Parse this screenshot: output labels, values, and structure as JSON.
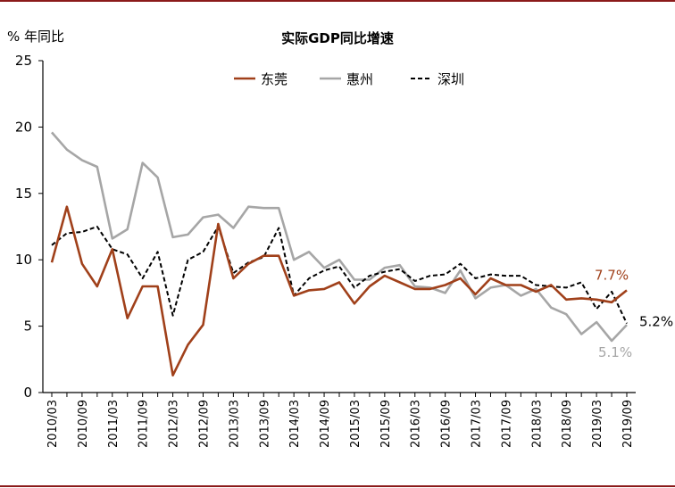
{
  "chart_data": {
    "type": "line",
    "title": "实际GDP同比增速",
    "ylabel": "% 年同比",
    "xlabel": "",
    "ylim": [
      0,
      25
    ],
    "yticks": [
      0,
      5,
      10,
      15,
      20,
      25
    ],
    "grid": false,
    "legend_position": "top",
    "x": [
      "2010/03",
      "2010/06",
      "2010/09",
      "2010/12",
      "2011/03",
      "2011/06",
      "2011/09",
      "2011/12",
      "2012/03",
      "2012/06",
      "2012/09",
      "2012/12",
      "2013/03",
      "2013/06",
      "2013/09",
      "2013/12",
      "2014/03",
      "2014/06",
      "2014/09",
      "2014/12",
      "2015/03",
      "2015/06",
      "2015/09",
      "2015/12",
      "2016/03",
      "2016/06",
      "2016/09",
      "2016/12",
      "2017/03",
      "2017/06",
      "2017/09",
      "2017/12",
      "2018/03",
      "2018/06",
      "2018/09",
      "2018/12",
      "2019/03",
      "2019/06",
      "2019/09"
    ],
    "xtick_labels": [
      "2010/03",
      "2010/09",
      "2011/03",
      "2011/09",
      "2012/03",
      "2012/09",
      "2013/03",
      "2013/09",
      "2014/03",
      "2014/09",
      "2015/03",
      "2015/09",
      "2016/03",
      "2016/09",
      "2017/03",
      "2017/09",
      "2018/03",
      "2018/09",
      "2019/03",
      "2019/09"
    ],
    "series": [
      {
        "name": "东莞",
        "color": "#a0401a",
        "style": "solid",
        "values": [
          9.8,
          14.0,
          9.7,
          8.0,
          10.8,
          5.6,
          8.0,
          8.0,
          1.3,
          3.6,
          5.1,
          12.7,
          8.6,
          9.7,
          10.3,
          10.3,
          7.3,
          7.7,
          7.8,
          8.3,
          6.7,
          8.0,
          8.8,
          8.3,
          7.8,
          7.8,
          8.1,
          8.6,
          7.4,
          8.6,
          8.1,
          8.1,
          7.6,
          8.1,
          7.0,
          7.1,
          7.0,
          6.8,
          7.7
        ]
      },
      {
        "name": "惠州",
        "color": "#a6a6a6",
        "style": "solid",
        "values": [
          19.6,
          18.3,
          17.5,
          17.0,
          11.6,
          12.3,
          17.3,
          16.2,
          11.7,
          11.9,
          13.2,
          13.4,
          12.4,
          14.0,
          13.9,
          13.9,
          10.0,
          10.6,
          9.4,
          10.0,
          8.5,
          8.5,
          9.4,
          9.6,
          8.0,
          7.9,
          7.5,
          9.2,
          7.1,
          7.9,
          8.1,
          7.3,
          7.8,
          6.4,
          5.9,
          4.4,
          5.3,
          3.9,
          5.1
        ]
      },
      {
        "name": "深圳",
        "color": "#000000",
        "style": "dashed",
        "values": [
          11.1,
          12.0,
          12.1,
          12.5,
          10.8,
          10.4,
          8.6,
          10.6,
          5.8,
          10.0,
          10.6,
          12.5,
          9.0,
          9.8,
          10.2,
          12.4,
          7.3,
          8.6,
          9.2,
          9.5,
          7.9,
          8.8,
          9.1,
          9.3,
          8.4,
          8.8,
          8.9,
          9.7,
          8.6,
          8.9,
          8.8,
          8.8,
          8.1,
          8.0,
          7.9,
          8.3,
          6.3,
          7.6,
          5.2
        ]
      }
    ],
    "annotations": [
      {
        "text": "7.7%",
        "series": "东莞",
        "color": "#a0401a"
      },
      {
        "text": "5.2%",
        "series": "深圳",
        "color": "#000000"
      },
      {
        "text": "5.1%",
        "series": "惠州",
        "color": "#a6a6a6"
      }
    ]
  }
}
